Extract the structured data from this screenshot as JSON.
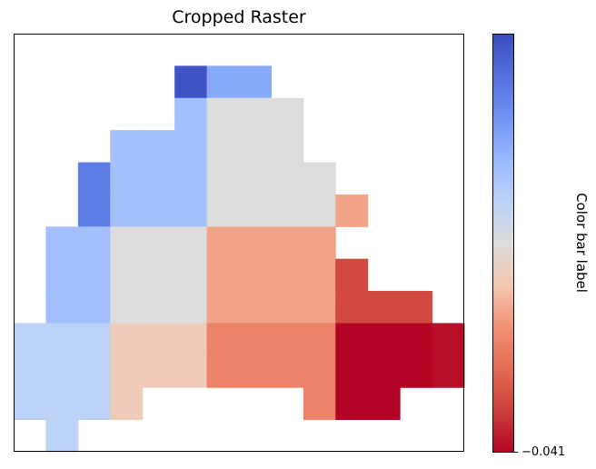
{
  "chart_data": {
    "type": "heatmap",
    "title": "Cropped Raster",
    "colormap": "coolwarm",
    "value_note": "values given as fraction along colormap (0 = bottom/red, 1 = top/blue); null = no data",
    "colorbar": {
      "label": "Color bar label",
      "ticks": [
        "−0.041"
      ],
      "tick_value_min": -0.041
    },
    "grid": [
      [
        null,
        null,
        null,
        null,
        null,
        null,
        null,
        null,
        null,
        null,
        null,
        null,
        null,
        null
      ],
      [
        null,
        null,
        null,
        null,
        null,
        0.98,
        0.74,
        0.74,
        null,
        null,
        null,
        null,
        null,
        null
      ],
      [
        null,
        null,
        null,
        null,
        null,
        0.67,
        0.5,
        0.5,
        0.5,
        null,
        null,
        null,
        null,
        null
      ],
      [
        null,
        null,
        null,
        0.67,
        0.67,
        0.67,
        0.5,
        0.5,
        0.5,
        null,
        null,
        null,
        null,
        null
      ],
      [
        null,
        null,
        0.86,
        0.67,
        0.67,
        0.67,
        0.5,
        0.5,
        0.5,
        0.5,
        null,
        null,
        null,
        null
      ],
      [
        null,
        null,
        0.86,
        0.67,
        0.67,
        0.67,
        0.5,
        0.5,
        0.5,
        0.5,
        0.33,
        null,
        null,
        null
      ],
      [
        null,
        0.67,
        0.67,
        0.5,
        0.5,
        0.5,
        0.33,
        0.33,
        0.33,
        0.33,
        null,
        null,
        null,
        null
      ],
      [
        null,
        0.67,
        0.67,
        0.5,
        0.5,
        0.5,
        0.33,
        0.33,
        0.33,
        0.33,
        0.12,
        null,
        null,
        null
      ],
      [
        null,
        0.67,
        0.67,
        0.5,
        0.5,
        0.5,
        0.33,
        0.33,
        0.33,
        0.33,
        0.12,
        0.12,
        0.12,
        null
      ],
      [
        0.6,
        0.6,
        0.6,
        0.42,
        0.42,
        0.42,
        0.26,
        0.26,
        0.26,
        0.26,
        0.0,
        0.0,
        0.0,
        0.02
      ],
      [
        0.6,
        0.6,
        0.6,
        0.42,
        0.42,
        0.42,
        0.26,
        0.26,
        0.26,
        0.26,
        0.0,
        0.0,
        0.0,
        0.02
      ],
      [
        0.6,
        0.6,
        0.6,
        0.42,
        null,
        null,
        null,
        null,
        null,
        0.26,
        0.0,
        0.0,
        null,
        null
      ],
      [
        null,
        0.6,
        null,
        null,
        null,
        null,
        null,
        null,
        null,
        null,
        null,
        null,
        null,
        null
      ]
    ]
  }
}
